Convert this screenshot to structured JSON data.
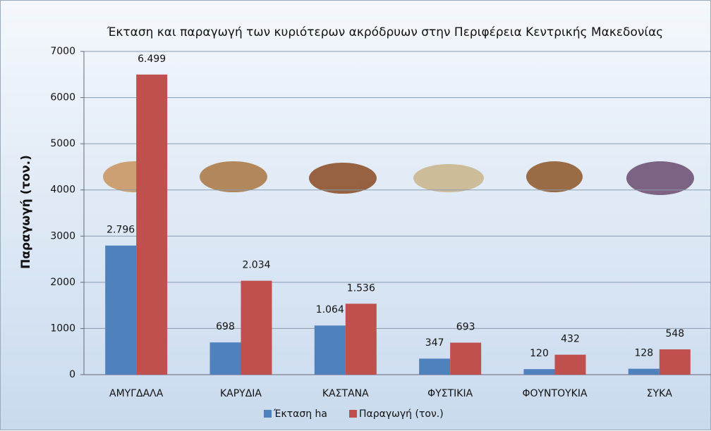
{
  "chart_data": {
    "type": "bar",
    "title": "Έκταση και παραγωγή των κυριότερων ακρόδρυων στην Περιφέρεια Κεντρικής Μακεδονίας",
    "y_label": "Παραγωγή  (τον.)",
    "categories": [
      "ΑΜΥΓΔΑΛΑ",
      "ΚΑΡΥΔΙΑ",
      "ΚΑΣΤΑΝΑ",
      "ΦΥΣΤΙΚΙΑ",
      "ΦΟΥΝΤΟΥΚΙΑ",
      "ΣΥΚΑ"
    ],
    "series": [
      {
        "name": "Έκταση ha",
        "color": "#4f81bd",
        "values": [
          2796,
          698,
          1064,
          347,
          120,
          128
        ],
        "value_labels": [
          "2.796",
          "698",
          "1.064",
          "347",
          "120",
          "128"
        ]
      },
      {
        "name": "Παραγωγή (τον.)",
        "color": "#c0504d",
        "values": [
          6499,
          2034,
          1536,
          693,
          432,
          548
        ],
        "value_labels": [
          "6.499",
          "2.034",
          "1.536",
          "693",
          "432",
          "548"
        ]
      }
    ],
    "ylim": [
      0,
      7000
    ],
    "yticks": [
      0,
      1000,
      2000,
      3000,
      4000,
      5000,
      6000,
      7000
    ],
    "grid": true,
    "legend": "bottom"
  }
}
